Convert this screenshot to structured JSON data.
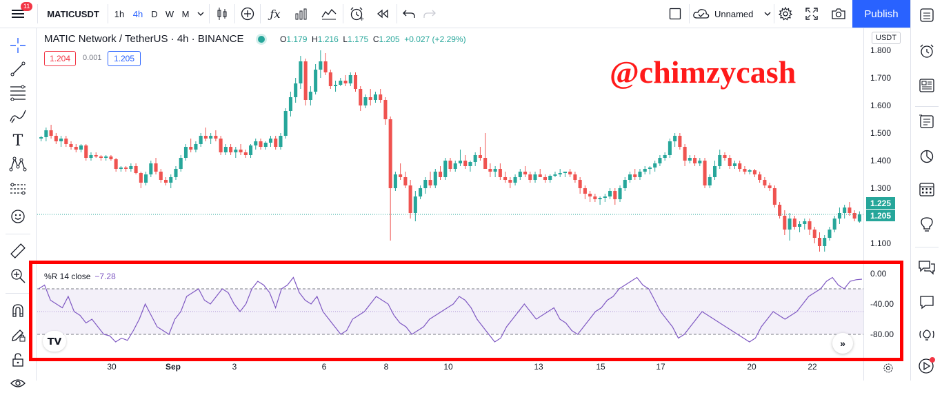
{
  "toolbar": {
    "menu_badge": "11",
    "symbol": "MATICUSDT",
    "intervals": [
      "1h",
      "4h",
      "D",
      "W",
      "M"
    ],
    "selected_interval": "4h",
    "layout_name": "Unnamed",
    "publish_label": "Publish"
  },
  "legend": {
    "title": "MATIC Network / TetherUS · 4h · BINANCE",
    "o_key": "O",
    "o_val": "1.179",
    "h_key": "H",
    "h_val": "1.216",
    "l_key": "L",
    "l_val": "1.175",
    "c_key": "C",
    "c_val": "1.205",
    "change": "+0.027 (+2.29%)",
    "sell_price": "1.204",
    "spread": "0.001",
    "buy_price": "1.205"
  },
  "watermark_text": "@chimzycash",
  "currency_label": "USDT",
  "price_axis_ticks": [
    "1.800",
    "1.700",
    "1.600",
    "1.500",
    "1.400",
    "1.300",
    "1.100"
  ],
  "price_tags": {
    "high_tag": "1.225",
    "last_tag": "1.205"
  },
  "indicator": {
    "label": "%R 14 close",
    "value": "−7.28",
    "axis_ticks": [
      "0.00",
      "-40.00",
      "-80.00"
    ]
  },
  "time_axis_labels": [
    "30",
    "Sep",
    "3",
    "6",
    "8",
    "10",
    "13",
    "15",
    "17",
    "20",
    "22"
  ],
  "colors": {
    "up": "#26a69a",
    "down": "#ef5350",
    "indicator": "#7e57c2",
    "accent": "#2962ff",
    "highlight_box": "#ff0000"
  },
  "chart_data": {
    "type": "candlestick",
    "symbol": "MATICUSDT",
    "interval": "4h",
    "ylim": [
      1.05,
      1.83
    ],
    "candles_ohlc": [
      [
        1.48,
        1.49,
        1.47,
        1.485
      ],
      [
        1.485,
        1.52,
        1.47,
        1.51
      ],
      [
        1.51,
        1.53,
        1.48,
        1.49
      ],
      [
        1.49,
        1.5,
        1.46,
        1.47
      ],
      [
        1.47,
        1.49,
        1.45,
        1.48
      ],
      [
        1.48,
        1.49,
        1.45,
        1.46
      ],
      [
        1.46,
        1.47,
        1.44,
        1.45
      ],
      [
        1.45,
        1.46,
        1.43,
        1.44
      ],
      [
        1.44,
        1.46,
        1.43,
        1.455
      ],
      [
        1.455,
        1.46,
        1.4,
        1.41
      ],
      [
        1.41,
        1.43,
        1.4,
        1.42
      ],
      [
        1.42,
        1.43,
        1.41,
        1.415
      ],
      [
        1.415,
        1.42,
        1.4,
        1.41
      ],
      [
        1.41,
        1.42,
        1.4,
        1.415
      ],
      [
        1.415,
        1.42,
        1.4,
        1.405
      ],
      [
        1.405,
        1.41,
        1.36,
        1.37
      ],
      [
        1.37,
        1.38,
        1.36,
        1.375
      ],
      [
        1.375,
        1.38,
        1.36,
        1.37
      ],
      [
        1.37,
        1.39,
        1.36,
        1.38
      ],
      [
        1.38,
        1.39,
        1.35,
        1.355
      ],
      [
        1.355,
        1.36,
        1.3,
        1.32
      ],
      [
        1.32,
        1.36,
        1.31,
        1.35
      ],
      [
        1.35,
        1.4,
        1.34,
        1.39
      ],
      [
        1.39,
        1.41,
        1.35,
        1.36
      ],
      [
        1.36,
        1.37,
        1.32,
        1.33
      ],
      [
        1.33,
        1.34,
        1.31,
        1.32
      ],
      [
        1.32,
        1.35,
        1.3,
        1.34
      ],
      [
        1.34,
        1.38,
        1.33,
        1.37
      ],
      [
        1.37,
        1.42,
        1.36,
        1.41
      ],
      [
        1.41,
        1.46,
        1.4,
        1.45
      ],
      [
        1.45,
        1.48,
        1.43,
        1.44
      ],
      [
        1.44,
        1.47,
        1.43,
        1.46
      ],
      [
        1.46,
        1.5,
        1.45,
        1.49
      ],
      [
        1.49,
        1.52,
        1.47,
        1.48
      ],
      [
        1.48,
        1.5,
        1.46,
        1.49
      ],
      [
        1.49,
        1.51,
        1.47,
        1.48
      ],
      [
        1.48,
        1.49,
        1.42,
        1.43
      ],
      [
        1.43,
        1.46,
        1.42,
        1.45
      ],
      [
        1.45,
        1.46,
        1.42,
        1.43
      ],
      [
        1.43,
        1.45,
        1.41,
        1.44
      ],
      [
        1.44,
        1.46,
        1.42,
        1.43
      ],
      [
        1.43,
        1.44,
        1.41,
        1.42
      ],
      [
        1.42,
        1.46,
        1.41,
        1.455
      ],
      [
        1.455,
        1.48,
        1.44,
        1.47
      ],
      [
        1.47,
        1.48,
        1.44,
        1.45
      ],
      [
        1.45,
        1.47,
        1.44,
        1.465
      ],
      [
        1.465,
        1.49,
        1.45,
        1.48
      ],
      [
        1.48,
        1.49,
        1.44,
        1.45
      ],
      [
        1.45,
        1.5,
        1.44,
        1.49
      ],
      [
        1.49,
        1.59,
        1.48,
        1.58
      ],
      [
        1.58,
        1.65,
        1.56,
        1.63
      ],
      [
        1.63,
        1.7,
        1.61,
        1.68
      ],
      [
        1.68,
        1.78,
        1.66,
        1.76
      ],
      [
        1.76,
        1.77,
        1.6,
        1.62
      ],
      [
        1.62,
        1.67,
        1.6,
        1.65
      ],
      [
        1.65,
        1.75,
        1.64,
        1.73
      ],
      [
        1.73,
        1.8,
        1.7,
        1.76
      ],
      [
        1.76,
        1.79,
        1.71,
        1.72
      ],
      [
        1.72,
        1.73,
        1.66,
        1.67
      ],
      [
        1.67,
        1.69,
        1.65,
        1.675
      ],
      [
        1.675,
        1.7,
        1.67,
        1.69
      ],
      [
        1.69,
        1.71,
        1.67,
        1.68
      ],
      [
        1.68,
        1.72,
        1.67,
        1.71
      ],
      [
        1.71,
        1.72,
        1.65,
        1.66
      ],
      [
        1.66,
        1.67,
        1.58,
        1.6
      ],
      [
        1.6,
        1.64,
        1.59,
        1.63
      ],
      [
        1.63,
        1.66,
        1.6,
        1.62
      ],
      [
        1.62,
        1.65,
        1.61,
        1.64
      ],
      [
        1.64,
        1.66,
        1.61,
        1.62
      ],
      [
        1.62,
        1.63,
        1.53,
        1.55
      ],
      [
        1.55,
        1.56,
        1.11,
        1.3
      ],
      [
        1.3,
        1.36,
        1.29,
        1.35
      ],
      [
        1.35,
        1.39,
        1.33,
        1.34
      ],
      [
        1.34,
        1.36,
        1.3,
        1.31
      ],
      [
        1.31,
        1.33,
        1.19,
        1.21
      ],
      [
        1.21,
        1.29,
        1.18,
        1.27
      ],
      [
        1.27,
        1.31,
        1.26,
        1.3
      ],
      [
        1.3,
        1.34,
        1.28,
        1.33
      ],
      [
        1.33,
        1.36,
        1.3,
        1.31
      ],
      [
        1.31,
        1.37,
        1.3,
        1.36
      ],
      [
        1.36,
        1.38,
        1.33,
        1.34
      ],
      [
        1.34,
        1.41,
        1.33,
        1.4
      ],
      [
        1.4,
        1.41,
        1.36,
        1.37
      ],
      [
        1.37,
        1.4,
        1.36,
        1.39
      ],
      [
        1.39,
        1.44,
        1.38,
        1.4
      ],
      [
        1.4,
        1.42,
        1.37,
        1.38
      ],
      [
        1.38,
        1.4,
        1.36,
        1.395
      ],
      [
        1.395,
        1.43,
        1.38,
        1.42
      ],
      [
        1.42,
        1.45,
        1.4,
        1.41
      ],
      [
        1.41,
        1.5,
        1.39,
        1.37
      ],
      [
        1.37,
        1.39,
        1.34,
        1.36
      ],
      [
        1.36,
        1.38,
        1.34,
        1.37
      ],
      [
        1.37,
        1.39,
        1.33,
        1.34
      ],
      [
        1.34,
        1.36,
        1.32,
        1.33
      ],
      [
        1.33,
        1.34,
        1.3,
        1.32
      ],
      [
        1.32,
        1.35,
        1.31,
        1.34
      ],
      [
        1.34,
        1.37,
        1.33,
        1.36
      ],
      [
        1.36,
        1.38,
        1.34,
        1.35
      ],
      [
        1.35,
        1.36,
        1.32,
        1.33
      ],
      [
        1.33,
        1.36,
        1.32,
        1.35
      ],
      [
        1.35,
        1.37,
        1.34,
        1.34
      ],
      [
        1.34,
        1.35,
        1.32,
        1.33
      ],
      [
        1.33,
        1.35,
        1.32,
        1.345
      ],
      [
        1.345,
        1.36,
        1.34,
        1.35
      ],
      [
        1.35,
        1.37,
        1.34,
        1.355
      ],
      [
        1.355,
        1.36,
        1.34,
        1.36
      ],
      [
        1.36,
        1.37,
        1.34,
        1.35
      ],
      [
        1.35,
        1.36,
        1.32,
        1.33
      ],
      [
        1.33,
        1.34,
        1.28,
        1.3
      ],
      [
        1.3,
        1.31,
        1.26,
        1.28
      ],
      [
        1.28,
        1.29,
        1.25,
        1.27
      ],
      [
        1.27,
        1.28,
        1.25,
        1.26
      ],
      [
        1.26,
        1.27,
        1.24,
        1.265
      ],
      [
        1.265,
        1.28,
        1.25,
        1.27
      ],
      [
        1.27,
        1.3,
        1.26,
        1.29
      ],
      [
        1.29,
        1.3,
        1.24,
        1.26
      ],
      [
        1.26,
        1.31,
        1.25,
        1.3
      ],
      [
        1.3,
        1.34,
        1.29,
        1.33
      ],
      [
        1.33,
        1.36,
        1.32,
        1.35
      ],
      [
        1.35,
        1.37,
        1.33,
        1.34
      ],
      [
        1.34,
        1.37,
        1.33,
        1.36
      ],
      [
        1.36,
        1.38,
        1.35,
        1.37
      ],
      [
        1.37,
        1.38,
        1.35,
        1.375
      ],
      [
        1.375,
        1.4,
        1.36,
        1.39
      ],
      [
        1.39,
        1.42,
        1.38,
        1.41
      ],
      [
        1.41,
        1.43,
        1.4,
        1.42
      ],
      [
        1.42,
        1.48,
        1.41,
        1.47
      ],
      [
        1.47,
        1.5,
        1.45,
        1.49
      ],
      [
        1.49,
        1.5,
        1.44,
        1.45
      ],
      [
        1.45,
        1.46,
        1.38,
        1.4
      ],
      [
        1.4,
        1.42,
        1.39,
        1.41
      ],
      [
        1.41,
        1.42,
        1.38,
        1.39
      ],
      [
        1.39,
        1.41,
        1.38,
        1.4
      ],
      [
        1.4,
        1.41,
        1.3,
        1.31
      ],
      [
        1.31,
        1.35,
        1.3,
        1.34
      ],
      [
        1.34,
        1.4,
        1.33,
        1.38
      ],
      [
        1.38,
        1.44,
        1.37,
        1.42
      ],
      [
        1.42,
        1.43,
        1.4,
        1.41
      ],
      [
        1.41,
        1.42,
        1.37,
        1.38
      ],
      [
        1.38,
        1.4,
        1.37,
        1.39
      ],
      [
        1.39,
        1.4,
        1.36,
        1.37
      ],
      [
        1.37,
        1.38,
        1.35,
        1.36
      ],
      [
        1.36,
        1.37,
        1.35,
        1.365
      ],
      [
        1.365,
        1.37,
        1.34,
        1.35
      ],
      [
        1.35,
        1.36,
        1.32,
        1.33
      ],
      [
        1.33,
        1.34,
        1.3,
        1.31
      ],
      [
        1.31,
        1.32,
        1.29,
        1.3
      ],
      [
        1.3,
        1.31,
        1.23,
        1.24
      ],
      [
        1.24,
        1.25,
        1.19,
        1.2
      ],
      [
        1.2,
        1.22,
        1.13,
        1.15
      ],
      [
        1.15,
        1.21,
        1.11,
        1.19
      ],
      [
        1.19,
        1.2,
        1.15,
        1.16
      ],
      [
        1.16,
        1.18,
        1.14,
        1.17
      ],
      [
        1.17,
        1.19,
        1.15,
        1.18
      ],
      [
        1.18,
        1.19,
        1.13,
        1.15
      ],
      [
        1.15,
        1.16,
        1.1,
        1.12
      ],
      [
        1.12,
        1.14,
        1.07,
        1.09
      ],
      [
        1.09,
        1.13,
        1.07,
        1.12
      ],
      [
        1.12,
        1.16,
        1.11,
        1.15
      ],
      [
        1.15,
        1.2,
        1.14,
        1.19
      ],
      [
        1.19,
        1.23,
        1.17,
        1.21
      ],
      [
        1.21,
        1.24,
        1.19,
        1.23
      ],
      [
        1.23,
        1.25,
        1.2,
        1.21
      ],
      [
        1.21,
        1.22,
        1.18,
        1.19
      ],
      [
        1.179,
        1.216,
        1.175,
        1.205
      ]
    ],
    "williams_r_14": [
      -20,
      -15,
      -35,
      -40,
      -45,
      -30,
      -50,
      -55,
      -65,
      -60,
      -70,
      -80,
      -82,
      -90,
      -85,
      -88,
      -75,
      -60,
      -40,
      -55,
      -70,
      -75,
      -80,
      -60,
      -50,
      -30,
      -25,
      -20,
      -35,
      -40,
      -30,
      -20,
      -25,
      -40,
      -50,
      -40,
      -20,
      -10,
      -15,
      -25,
      -45,
      -20,
      -15,
      -5,
      -25,
      -35,
      -40,
      -30,
      -50,
      -60,
      -70,
      -80,
      -75,
      -60,
      -55,
      -50,
      -40,
      -30,
      -35,
      -40,
      -55,
      -65,
      -70,
      -80,
      -75,
      -70,
      -60,
      -55,
      -50,
      -45,
      -40,
      -30,
      -35,
      -45,
      -60,
      -70,
      -80,
      -90,
      -85,
      -70,
      -60,
      -50,
      -40,
      -50,
      -60,
      -55,
      -50,
      -45,
      -60,
      -65,
      -75,
      -80,
      -70,
      -60,
      -50,
      -45,
      -35,
      -30,
      -20,
      -15,
      -10,
      -5,
      -15,
      -20,
      -35,
      -50,
      -60,
      -70,
      -85,
      -80,
      -70,
      -60,
      -50,
      -55,
      -60,
      -65,
      -70,
      -75,
      -80,
      -85,
      -90,
      -85,
      -70,
      -60,
      -50,
      -55,
      -60,
      -55,
      -50,
      -40,
      -30,
      -25,
      -20,
      -10,
      -5,
      -15,
      -20,
      -10,
      -8,
      -7.28
    ]
  }
}
